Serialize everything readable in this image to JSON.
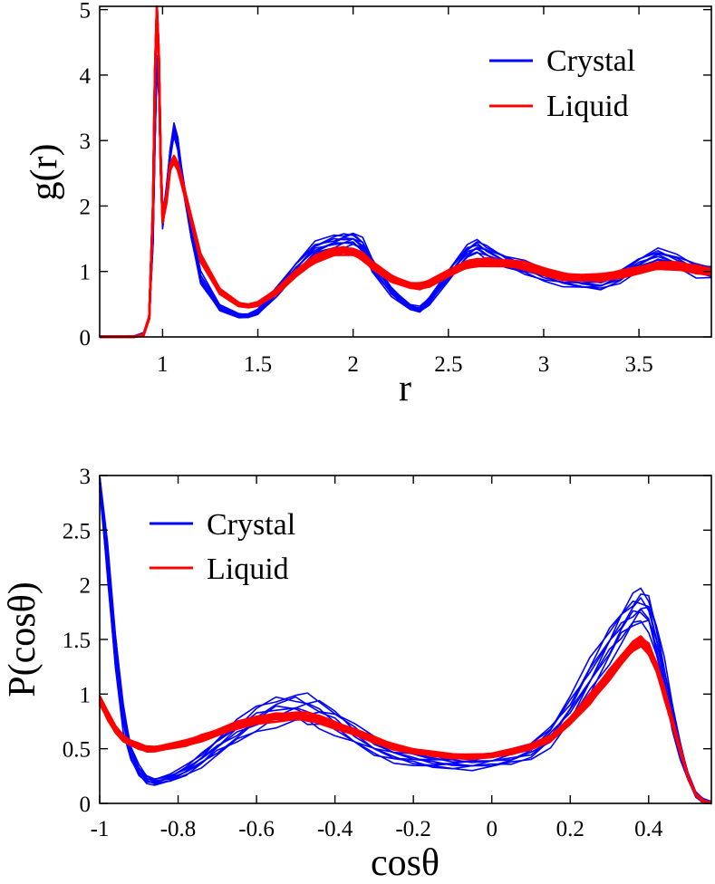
{
  "chart_data": [
    {
      "type": "line",
      "xlabel": "r",
      "ylabel": "g(r)",
      "xlim": [
        0.67,
        3.88
      ],
      "ylim": [
        0,
        5.05
      ],
      "xticks": [
        1,
        1.5,
        2,
        2.5,
        3,
        3.5
      ],
      "xtick_labels": [
        "1",
        "1.5",
        "2",
        "2.5",
        "3",
        "3.5"
      ],
      "yticks": [
        0,
        1,
        2,
        3,
        4,
        5
      ],
      "ytick_labels": [
        "0",
        "1",
        "2",
        "3",
        "4",
        "5"
      ],
      "legend_position": "top-right",
      "series": [
        {
          "name": "Crystal",
          "color": "#0000ff",
          "band": 0.09,
          "x": [
            0.67,
            0.85,
            0.9,
            0.93,
            0.95,
            0.96,
            0.97,
            0.98,
            0.99,
            1.0,
            1.02,
            1.04,
            1.06,
            1.08,
            1.1,
            1.15,
            1.2,
            1.3,
            1.4,
            1.45,
            1.5,
            1.6,
            1.7,
            1.8,
            1.9,
            1.95,
            2.0,
            2.05,
            2.1,
            2.2,
            2.3,
            2.35,
            2.4,
            2.5,
            2.6,
            2.65,
            2.7,
            2.8,
            2.9,
            3.0,
            3.1,
            3.2,
            3.3,
            3.4,
            3.5,
            3.6,
            3.7,
            3.8,
            3.88
          ],
          "y": [
            0,
            0,
            0.05,
            0.3,
            1.5,
            3.0,
            4.2,
            3.8,
            2.5,
            1.75,
            2.2,
            2.8,
            3.15,
            2.95,
            2.5,
            1.6,
            0.9,
            0.45,
            0.33,
            0.32,
            0.38,
            0.7,
            1.05,
            1.35,
            1.45,
            1.48,
            1.5,
            1.4,
            1.1,
            0.7,
            0.45,
            0.42,
            0.55,
            0.95,
            1.3,
            1.38,
            1.3,
            1.15,
            1.05,
            0.95,
            0.87,
            0.82,
            0.8,
            0.92,
            1.12,
            1.25,
            1.15,
            1.02,
            1.0
          ]
        },
        {
          "name": "Liquid",
          "color": "#ff0000",
          "band": 0.05,
          "x": [
            0.67,
            0.85,
            0.9,
            0.93,
            0.95,
            0.96,
            0.97,
            0.98,
            0.99,
            1.0,
            1.02,
            1.04,
            1.06,
            1.08,
            1.1,
            1.15,
            1.2,
            1.3,
            1.4,
            1.45,
            1.5,
            1.6,
            1.7,
            1.8,
            1.9,
            1.95,
            2.0,
            2.05,
            2.1,
            2.2,
            2.3,
            2.35,
            2.4,
            2.5,
            2.6,
            2.65,
            2.7,
            2.8,
            2.9,
            3.0,
            3.1,
            3.2,
            3.3,
            3.4,
            3.5,
            3.6,
            3.7,
            3.8,
            3.88
          ],
          "y": [
            0,
            0,
            0.03,
            0.3,
            2.0,
            4.0,
            5.0,
            4.3,
            2.7,
            1.8,
            2.1,
            2.6,
            2.7,
            2.6,
            2.4,
            1.8,
            1.2,
            0.7,
            0.5,
            0.47,
            0.5,
            0.7,
            0.98,
            1.18,
            1.3,
            1.32,
            1.3,
            1.22,
            1.1,
            0.9,
            0.78,
            0.77,
            0.82,
            0.98,
            1.1,
            1.13,
            1.15,
            1.13,
            1.08,
            1.0,
            0.93,
            0.9,
            0.9,
            0.96,
            1.03,
            1.08,
            1.08,
            1.04,
            1.0
          ]
        }
      ]
    },
    {
      "type": "line",
      "xlabel": "cosθ",
      "ylabel": "P(cosθ)",
      "xlim": [
        -1.0,
        0.56
      ],
      "ylim": [
        0,
        3.0
      ],
      "xticks": [
        -1,
        -0.8,
        -0.6,
        -0.4,
        -0.2,
        0,
        0.2,
        0.4
      ],
      "xtick_labels": [
        "-1",
        "-0.8",
        "-0.6",
        "-0.4",
        "-0.2",
        "0",
        "0.2",
        "0.4"
      ],
      "yticks": [
        0,
        0.5,
        1,
        1.5,
        2,
        2.5,
        3
      ],
      "ytick_labels": [
        "0",
        "0.5",
        "1",
        "1.5",
        "2",
        "2.5",
        "3"
      ],
      "legend_position": "top-left",
      "series": [
        {
          "name": "Crystal",
          "color": "#0000ff",
          "band": 0.14,
          "x": [
            -1.0,
            -0.98,
            -0.96,
            -0.94,
            -0.92,
            -0.9,
            -0.88,
            -0.86,
            -0.82,
            -0.78,
            -0.74,
            -0.7,
            -0.65,
            -0.6,
            -0.55,
            -0.5,
            -0.47,
            -0.44,
            -0.4,
            -0.35,
            -0.3,
            -0.25,
            -0.2,
            -0.15,
            -0.1,
            -0.05,
            0.0,
            0.05,
            0.1,
            0.15,
            0.2,
            0.25,
            0.3,
            0.33,
            0.36,
            0.38,
            0.4,
            0.42,
            0.44,
            0.46,
            0.48,
            0.5,
            0.52,
            0.54,
            0.56
          ],
          "y": [
            3.0,
            2.2,
            1.4,
            0.8,
            0.45,
            0.3,
            0.22,
            0.2,
            0.23,
            0.3,
            0.4,
            0.52,
            0.65,
            0.77,
            0.85,
            0.87,
            0.85,
            0.82,
            0.75,
            0.63,
            0.52,
            0.45,
            0.41,
            0.38,
            0.37,
            0.37,
            0.39,
            0.42,
            0.48,
            0.62,
            0.85,
            1.15,
            1.45,
            1.62,
            1.75,
            1.8,
            1.75,
            1.5,
            1.15,
            0.8,
            0.5,
            0.25,
            0.08,
            0.02,
            0.0
          ]
        },
        {
          "name": "Liquid",
          "color": "#ff0000",
          "band": 0.04,
          "x": [
            -1.0,
            -0.98,
            -0.96,
            -0.94,
            -0.92,
            -0.9,
            -0.88,
            -0.86,
            -0.82,
            -0.78,
            -0.74,
            -0.7,
            -0.65,
            -0.6,
            -0.55,
            -0.5,
            -0.47,
            -0.44,
            -0.4,
            -0.35,
            -0.3,
            -0.25,
            -0.2,
            -0.15,
            -0.1,
            -0.05,
            0.0,
            0.05,
            0.1,
            0.15,
            0.2,
            0.25,
            0.3,
            0.33,
            0.36,
            0.38,
            0.4,
            0.42,
            0.44,
            0.46,
            0.48,
            0.5,
            0.52,
            0.54,
            0.56
          ],
          "y": [
            0.95,
            0.8,
            0.68,
            0.6,
            0.55,
            0.52,
            0.5,
            0.5,
            0.52,
            0.55,
            0.6,
            0.65,
            0.71,
            0.76,
            0.79,
            0.8,
            0.79,
            0.77,
            0.72,
            0.65,
            0.58,
            0.52,
            0.48,
            0.45,
            0.43,
            0.43,
            0.44,
            0.47,
            0.52,
            0.6,
            0.75,
            0.95,
            1.18,
            1.32,
            1.43,
            1.48,
            1.42,
            1.25,
            1.0,
            0.75,
            0.5,
            0.25,
            0.08,
            0.02,
            0.0
          ]
        }
      ]
    }
  ]
}
